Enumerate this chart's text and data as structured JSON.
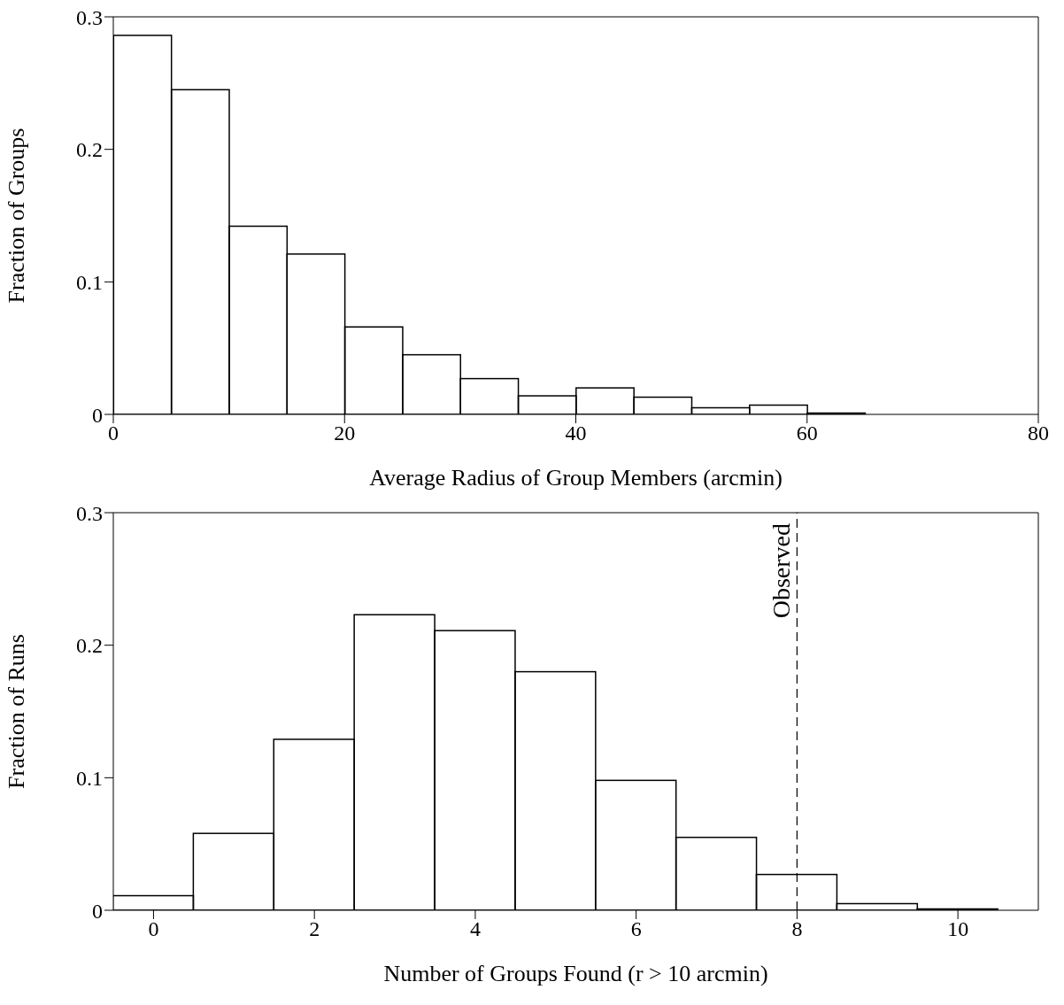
{
  "chart_data": [
    {
      "type": "histogram",
      "xlabel": "Average Radius of Group Members (arcmin)",
      "ylabel": "Fraction of Groups",
      "bins": [
        0,
        5,
        10,
        15,
        20,
        25,
        30,
        35,
        40,
        45,
        50,
        55,
        60,
        65,
        70,
        75,
        80
      ],
      "values": [
        0.286,
        0.245,
        0.142,
        0.121,
        0.066,
        0.045,
        0.027,
        0.014,
        0.02,
        0.013,
        0.005,
        0.007,
        0.001,
        0,
        0,
        0
      ],
      "color": "#000000",
      "xlim": [
        0,
        80
      ],
      "xticks": [
        0,
        20,
        40,
        60,
        80
      ],
      "ylim": [
        0,
        0.3
      ],
      "yticks": [
        0,
        0.1,
        0.2,
        0.3
      ],
      "grid": false,
      "legend": false
    },
    {
      "type": "histogram",
      "xlabel": "Number of Groups Found (r > 10 arcmin)",
      "ylabel": "Fraction of Runs",
      "bins": [
        -0.5,
        0.5,
        1.5,
        2.5,
        3.5,
        4.5,
        5.5,
        6.5,
        7.5,
        8.5,
        9.5,
        10.5
      ],
      "values": [
        0.011,
        0.058,
        0.129,
        0.223,
        0.211,
        0.18,
        0.098,
        0.055,
        0.027,
        0.005,
        0.001
      ],
      "color": "#000000",
      "xlim": [
        -0.5,
        11
      ],
      "xticks": [
        0,
        2,
        4,
        6,
        8,
        10
      ],
      "ylim": [
        0,
        0.3
      ],
      "yticks": [
        0,
        0.1,
        0.2,
        0.3
      ],
      "grid": false,
      "legend": false,
      "ref_lines": [
        {
          "axis": "x",
          "value": 8,
          "label": "Observed",
          "line_style": "dashed"
        }
      ]
    }
  ]
}
